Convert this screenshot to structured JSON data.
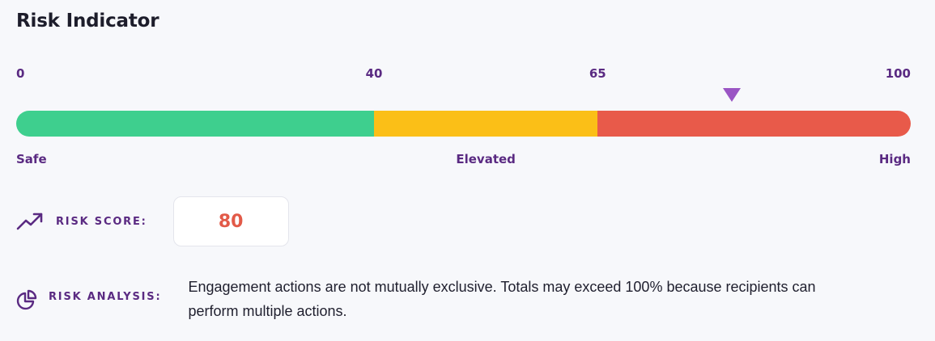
{
  "title": "Risk Indicator",
  "scale": {
    "min": 0,
    "max": 100,
    "ticks": [
      "0",
      "40",
      "65",
      "100"
    ],
    "tick_values": [
      0,
      40,
      65,
      100
    ],
    "segments": [
      {
        "from": 0,
        "to": 40,
        "color": "#3ecf8e"
      },
      {
        "from": 40,
        "to": 65,
        "color": "#fbbf17"
      },
      {
        "from": 65,
        "to": 100,
        "color": "#e85a4a"
      }
    ],
    "marker_value": 80,
    "zones": {
      "safe": "Safe",
      "elevated": "Elevated",
      "high": "High"
    }
  },
  "risk_score": {
    "label": "RISK SCORE:",
    "value": "80",
    "icon": "trending-up-icon"
  },
  "risk_analysis": {
    "label": "RISK ANALYSIS:",
    "text": "Engagement actions are not mutually exclusive. Totals may exceed 100% because recipients can perform multiple actions.",
    "icon": "pie-chart-icon"
  },
  "colors": {
    "accent": "#5a2a82",
    "marker": "#9a55c4",
    "score": "#e25a48"
  }
}
